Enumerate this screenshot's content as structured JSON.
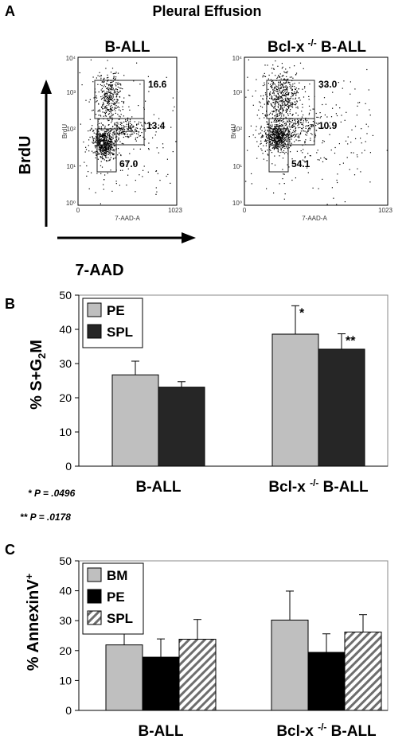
{
  "panel_a": {
    "letter": "A",
    "title": "Pleural Effusion",
    "y_arrow_label": "BrdU",
    "x_arrow_label": "7-AAD",
    "plots": [
      {
        "title": "B-ALL",
        "title_superscript": "",
        "title_suffix": "",
        "x_axis_label": "7-AAD-A",
        "y_axis_label": "BrdU",
        "x_ticks": [
          "0",
          "1023"
        ],
        "y_ticks": [
          "10⁰",
          "10¹",
          "10²",
          "10³",
          "10⁴"
        ],
        "gates": [
          {
            "name": "S",
            "label": "16.6"
          },
          {
            "name": "G2M",
            "label": "13.4"
          },
          {
            "name": "G1",
            "label": "67.0"
          }
        ]
      },
      {
        "title": "Bcl-x",
        "title_superscript": "-/-",
        "title_suffix": " B-ALL",
        "x_axis_label": "7-AAD-A",
        "y_axis_label": "BrdU",
        "x_ticks": [
          "0",
          "1023"
        ],
        "y_ticks": [
          "10⁰",
          "10¹",
          "10²",
          "10³",
          "10⁴"
        ],
        "gates": [
          {
            "name": "S",
            "label": "33.0"
          },
          {
            "name": "G2M",
            "label": "10.9"
          },
          {
            "name": "G1",
            "label": "54.1"
          }
        ]
      }
    ]
  },
  "chart_data": [
    {
      "panel": "B",
      "type": "bar",
      "ylabel": "% S+G",
      "ylabel_sub": "2",
      "ylabel_suffix": "M",
      "ylim": [
        0,
        50
      ],
      "yticks": [
        0,
        10,
        20,
        30,
        40,
        50
      ],
      "categories": [
        {
          "label": "B-ALL",
          "superscript": "",
          "suffix": ""
        },
        {
          "label": "Bcl-x ",
          "superscript": "-/-",
          "suffix": " B-ALL"
        }
      ],
      "series": [
        {
          "name": "PE",
          "color": "#bfbfbf",
          "pattern": "solid",
          "values": [
            26.7,
            38.6
          ],
          "errors": [
            4.0,
            8.3
          ]
        },
        {
          "name": "SPL",
          "color": "#262626",
          "pattern": "solid",
          "values": [
            23.1,
            34.2
          ],
          "errors": [
            1.6,
            4.5
          ]
        }
      ],
      "significance": [
        {
          "category": 1,
          "series": 0,
          "label": "*"
        },
        {
          "category": 1,
          "series": 1,
          "label": "**"
        }
      ],
      "footnotes": [
        "* P = .0496",
        "** P = .0178"
      ],
      "legend": "top-left",
      "grid": false
    },
    {
      "panel": "C",
      "type": "bar",
      "ylabel": "% AnnexinV",
      "ylabel_sup": "+",
      "ylim": [
        0,
        50
      ],
      "yticks": [
        0,
        10,
        20,
        30,
        40,
        50
      ],
      "categories": [
        {
          "label": "B-ALL",
          "superscript": "",
          "suffix": ""
        },
        {
          "label": "Bcl-x ",
          "superscript": "-/-",
          "suffix": " B-ALL"
        }
      ],
      "series": [
        {
          "name": "BM",
          "color": "#bfbfbf",
          "pattern": "solid",
          "values": [
            21.9,
            30.2
          ],
          "errors": [
            4.5,
            9.7
          ]
        },
        {
          "name": "PE",
          "color": "#000000",
          "pattern": "solid",
          "values": [
            17.8,
            19.4
          ],
          "errors": [
            6.1,
            6.2
          ]
        },
        {
          "name": "SPL",
          "color": "#ffffff",
          "pattern": "hatched",
          "values": [
            23.8,
            26.2
          ],
          "errors": [
            6.6,
            5.8
          ]
        }
      ],
      "legend": "top-left",
      "grid": false
    }
  ]
}
